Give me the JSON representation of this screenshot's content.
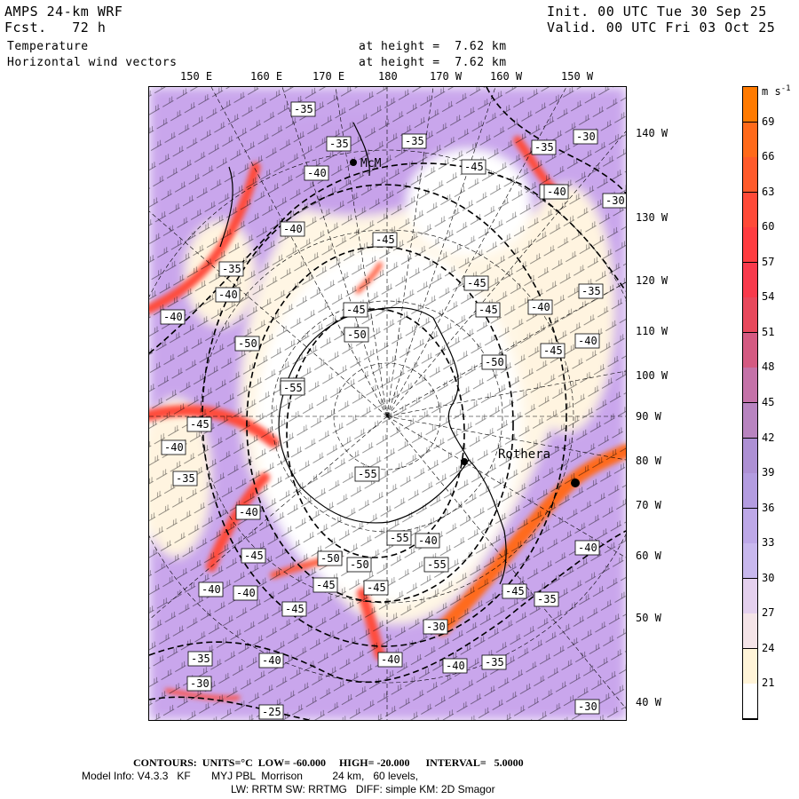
{
  "header": {
    "model": "AMPS 24-km WRF",
    "forecast": "Fcst.   72 h",
    "init": "Init. 00 UTC Tue 30 Sep 25",
    "valid": "Valid. 00 UTC Fri 03 Oct 25",
    "field1": "Temperature",
    "field2": "Horizontal wind vectors",
    "height1": "at height =  7.62 km",
    "height2": "at height =  7.62 km"
  },
  "top_ticks": [
    "150 E",
    "160 E",
    "170 E",
    "180",
    "170 W",
    "160 W",
    "150 W"
  ],
  "right_ticks": [
    "140 W",
    "130 W",
    "120 W",
    "110 W",
    "100 W",
    "90 W",
    "80 W",
    "70 W",
    "60 W",
    "50 W",
    "40 W"
  ],
  "legend": {
    "unit": "m s",
    "unit_exp": "-1",
    "values": [
      "69",
      "66",
      "63",
      "60",
      "57",
      "54",
      "51",
      "48",
      "45",
      "42",
      "39",
      "36",
      "33",
      "30",
      "27",
      "24",
      "21"
    ],
    "colors": [
      "#ff7a00",
      "#ff6a1a",
      "#ff5a2a",
      "#ff4a38",
      "#ff3c40",
      "#f83a4c",
      "#e8485c",
      "#d45a82",
      "#c472a8",
      "#b884c0",
      "#ad90d4",
      "#b39ce0",
      "#bda8e8",
      "#c8b8ee",
      "#e4d0ee",
      "#f4e4e8",
      "#fff4d8",
      "#ffffff"
    ]
  },
  "stations": [
    {
      "name": "McM",
      "color": "#000000"
    },
    {
      "name": "Rothera",
      "color": "#000000"
    }
  ],
  "contour_labels": [
    "-35",
    "-35",
    "-35",
    "-40",
    "-45",
    "-40",
    "-45",
    "-35",
    "-40",
    "-30",
    "-30",
    "-35",
    "-40",
    "-40",
    "-45",
    "-45",
    "-40",
    "-35",
    "-50",
    "-45",
    "-50",
    "-40",
    "-45",
    "-50",
    "-50",
    "-55",
    "-45",
    "-40",
    "-55",
    "-40",
    "-35",
    "-40",
    "-40",
    "-45",
    "-40",
    "-50",
    "-50",
    "-45",
    "-45",
    "-55",
    "-55",
    "-45",
    "-35",
    "-40",
    "-45",
    "-40",
    "-30",
    "-40",
    "-35",
    "-30",
    "-40",
    "-35",
    "-25",
    "-30",
    "-40"
  ],
  "footer": {
    "contours": "CONTOURS:  UNITS=°C  LOW= -60.000     HIGH= -20.000      INTERVAL=   5.0000",
    "model_info": "Model Info: V4.3.3   KF       MYJ PBL  Morrison          24 km,   60 levels,",
    "physics": "LW: RRTM SW: RRTMG   DIFF: simple KM: 2D Smagor"
  }
}
